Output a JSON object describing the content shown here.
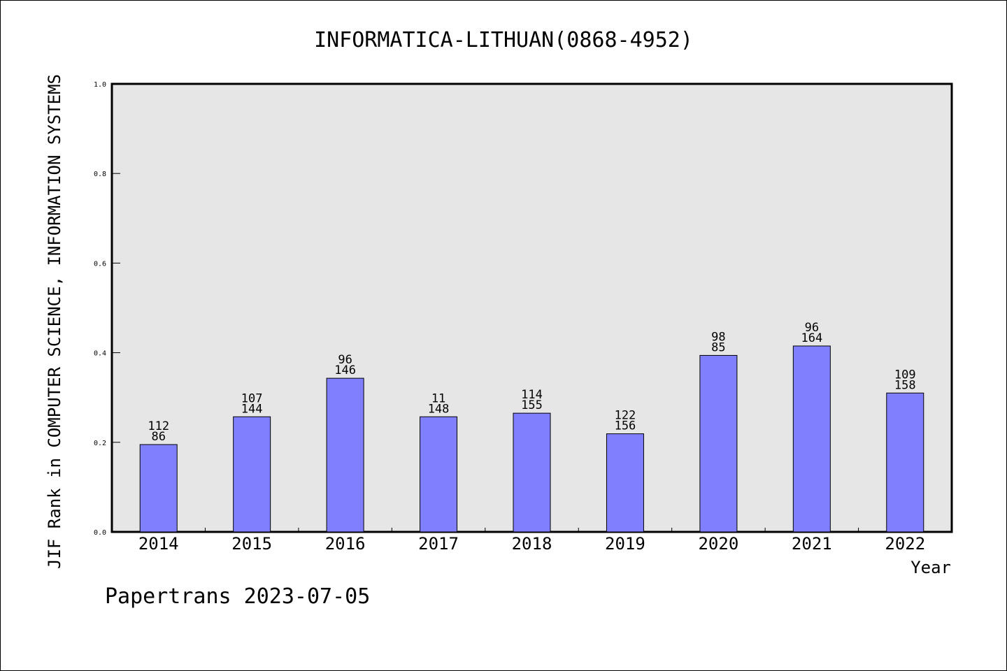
{
  "chart_data": {
    "type": "bar",
    "title": "INFORMATICA-LITHUAN(0868-4952)",
    "xlabel": "Year",
    "ylabel": "JIF Rank in COMPUTER SCIENCE, INFORMATION SYSTEMS",
    "ylim": [
      0,
      1.0
    ],
    "yticks": [
      "0.0",
      "0.2",
      "0.4",
      "0.6",
      "0.8",
      "1.0"
    ],
    "categories": [
      "2014",
      "2015",
      "2016",
      "2017",
      "2018",
      "2019",
      "2020",
      "2021",
      "2022"
    ],
    "values": [
      0.195,
      0.257,
      0.343,
      0.257,
      0.265,
      0.219,
      0.394,
      0.415,
      0.31
    ],
    "label_top": [
      "112",
      "107",
      "96",
      "11",
      "114",
      "122",
      "98",
      "96",
      "109"
    ],
    "label_bottom": [
      "86",
      "144",
      "146",
      "148",
      "155",
      "156",
      "85",
      "164",
      "158"
    ],
    "grid": false,
    "bar_color": "#8080ff",
    "plot_background": "#e6e6e6"
  },
  "footer": {
    "watermark": "Papertrans 2023-07-05"
  }
}
